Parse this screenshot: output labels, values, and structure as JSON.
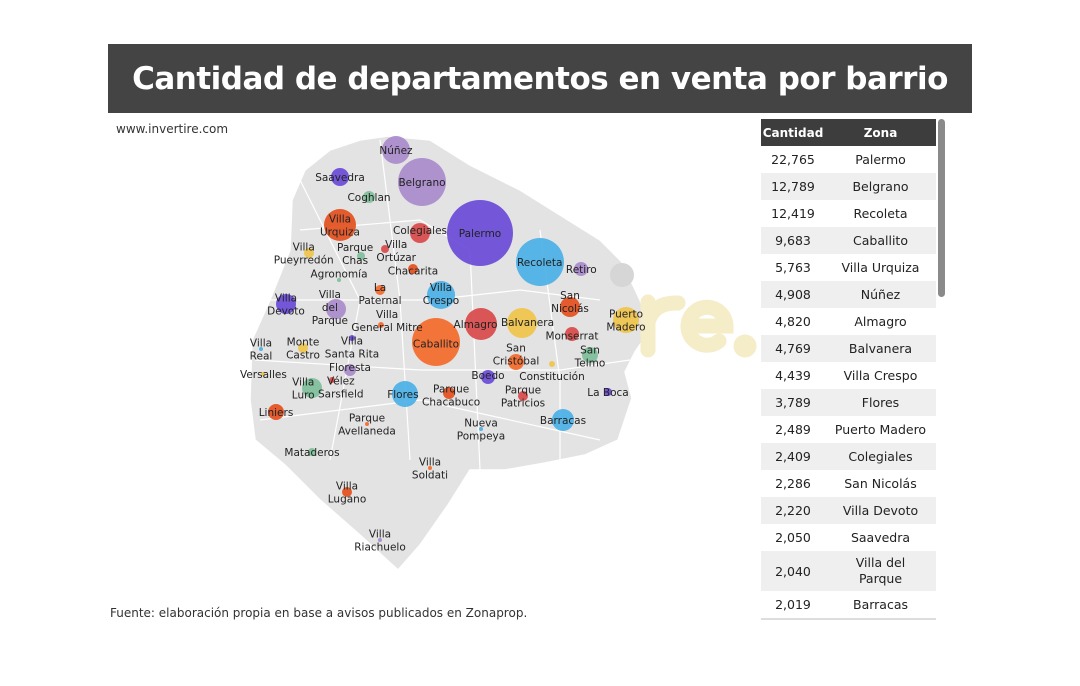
{
  "header": {
    "title": "Cantidad de departamentos en venta por barrio"
  },
  "site": "www.invertire.com",
  "source": "Fuente: elaboración propia en base a avisos publicados en Zonaprop.",
  "watermark": "re.",
  "table": {
    "headers": [
      "Cantidad",
      "Zona"
    ],
    "rows": [
      {
        "value": "22,765",
        "zone": "Palermo"
      },
      {
        "value": "12,789",
        "zone": "Belgrano"
      },
      {
        "value": "12,419",
        "zone": "Recoleta"
      },
      {
        "value": "9,683",
        "zone": "Caballito"
      },
      {
        "value": "5,763",
        "zone": "Villa Urquiza"
      },
      {
        "value": "4,908",
        "zone": "Núñez"
      },
      {
        "value": "4,820",
        "zone": "Almagro"
      },
      {
        "value": "4,769",
        "zone": "Balvanera"
      },
      {
        "value": "4,439",
        "zone": "Villa Crespo"
      },
      {
        "value": "3,789",
        "zone": "Flores"
      },
      {
        "value": "2,489",
        "zone": "Puerto Madero"
      },
      {
        "value": "2,409",
        "zone": "Colegiales"
      },
      {
        "value": "2,286",
        "zone": "San Nicolás"
      },
      {
        "value": "2,220",
        "zone": "Villa Devoto"
      },
      {
        "value": "2,050",
        "zone": "Saavedra"
      },
      {
        "value": "2,040",
        "zone": "Villa del Parque"
      },
      {
        "value": "2,019",
        "zone": "Barracas"
      }
    ]
  },
  "chart_data": {
    "type": "bubble-map",
    "colors": {
      "purple": "#6a4bd8",
      "lavender": "#a98bcb",
      "blue": "#4ab0e6",
      "orange": "#f46a2a",
      "redorange": "#e4501e",
      "red": "#d94a4a",
      "yellow": "#f0c44a",
      "green": "#7fbf9a"
    },
    "bubbles": [
      {
        "name": "Núñez",
        "value": 4908,
        "color": "lavender"
      },
      {
        "name": "Belgrano",
        "value": 12789,
        "color": "lavender"
      },
      {
        "name": "Saavedra",
        "value": 2050,
        "color": "purple"
      },
      {
        "name": "Coghlan",
        "color": "green"
      },
      {
        "name": "Palermo",
        "value": 22765,
        "color": "purple"
      },
      {
        "name": "Villa Urquiza",
        "value": 5763,
        "color": "redorange"
      },
      {
        "name": "Colegiales",
        "value": 2409,
        "color": "red"
      },
      {
        "name": "Villa Ortúzar",
        "color": "red"
      },
      {
        "name": "Recoleta",
        "value": 12419,
        "color": "blue"
      },
      {
        "name": "Retiro",
        "color": "lavender"
      },
      {
        "name": "Chacarita",
        "color": "redorange"
      },
      {
        "name": "Villa Pueyrredón",
        "color": "yellow"
      },
      {
        "name": "Parque Chas",
        "color": "green"
      },
      {
        "name": "Agronomía",
        "color": "green"
      },
      {
        "name": "La Paternal",
        "color": "orange"
      },
      {
        "name": "Villa Crespo",
        "value": 4439,
        "color": "blue"
      },
      {
        "name": "Villa Devoto",
        "value": 2220,
        "color": "purple"
      },
      {
        "name": "Villa del Parque",
        "value": 2040,
        "color": "lavender"
      },
      {
        "name": "Villa General Mitre",
        "color": "orange"
      },
      {
        "name": "Almagro",
        "value": 4820,
        "color": "red"
      },
      {
        "name": "Balvanera",
        "value": 4769,
        "color": "yellow"
      },
      {
        "name": "San Nicolás",
        "value": 2286,
        "color": "redorange"
      },
      {
        "name": "Monserrat",
        "color": "red"
      },
      {
        "name": "Puerto Madero",
        "value": 2489,
        "color": "yellow"
      },
      {
        "name": "Caballito",
        "value": 9683,
        "color": "orange"
      },
      {
        "name": "Villa Santa Rita",
        "color": "purple"
      },
      {
        "name": "Villa Real",
        "color": "blue"
      },
      {
        "name": "Monte Castro",
        "color": "yellow"
      },
      {
        "name": "San Cristóbal",
        "color": "orange"
      },
      {
        "name": "Constitución",
        "color": "yellow"
      },
      {
        "name": "San Telmo",
        "color": "green"
      },
      {
        "name": "Versalles",
        "color": "yellow"
      },
      {
        "name": "Floresta",
        "color": "lavender"
      },
      {
        "name": "Vélez Sarsfield",
        "color": "red"
      },
      {
        "name": "Villa Luro",
        "color": "green"
      },
      {
        "name": "Flores",
        "value": 3789,
        "color": "blue"
      },
      {
        "name": "Parque Chacabuco",
        "color": "redorange"
      },
      {
        "name": "Boedo",
        "color": "purple"
      },
      {
        "name": "Parque Patricios",
        "color": "red"
      },
      {
        "name": "La Boca",
        "color": "purple"
      },
      {
        "name": "Liniers",
        "color": "redorange"
      },
      {
        "name": "Barracas",
        "value": 2019,
        "color": "blue"
      },
      {
        "name": "Parque Avellaneda",
        "color": "orange"
      },
      {
        "name": "Nueva Pompeya",
        "color": "blue"
      },
      {
        "name": "Mataderos",
        "color": "green"
      },
      {
        "name": "Villa Soldati",
        "color": "orange"
      },
      {
        "name": "Villa Lugano",
        "color": "redorange"
      },
      {
        "name": "Villa Riachuelo",
        "color": "lavender"
      }
    ]
  }
}
